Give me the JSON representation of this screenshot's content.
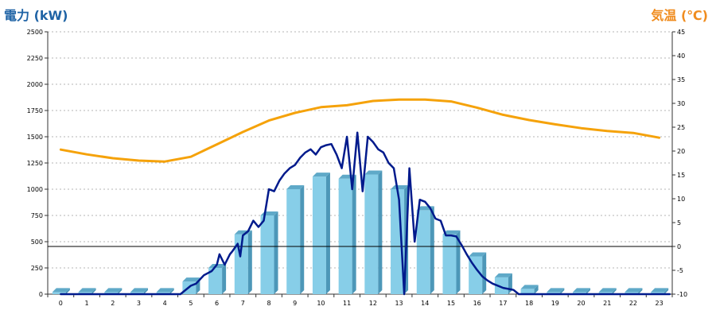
{
  "chart_data": {
    "type": "bar",
    "title": "",
    "left_axis": {
      "label": "電力 (kW)",
      "range": [
        0,
        2500
      ],
      "ticks": [
        0,
        250,
        500,
        750,
        1000,
        1250,
        1500,
        1750,
        2000,
        2250,
        2500
      ]
    },
    "right_axis": {
      "label": "気温 (℃)",
      "range": [
        -10,
        45
      ],
      "ticks": [
        -10,
        -5,
        0,
        5,
        10,
        15,
        20,
        25,
        30,
        35,
        40,
        45
      ]
    },
    "categories": [
      "0",
      "1",
      "2",
      "3",
      "4",
      "5",
      "6",
      "7",
      "8",
      "9",
      "10",
      "11",
      "12",
      "13",
      "14",
      "15",
      "16",
      "17",
      "18",
      "19",
      "20",
      "21",
      "22",
      "23"
    ],
    "grid": true,
    "legend": "none",
    "series": [
      {
        "type": "bar",
        "axis": "left",
        "color": "#87cee8",
        "values": [
          20,
          20,
          20,
          20,
          20,
          120,
          250,
          570,
          750,
          1000,
          1120,
          1100,
          1140,
          1000,
          800,
          570,
          360,
          160,
          50,
          20,
          20,
          20,
          20,
          20
        ]
      },
      {
        "type": "line",
        "axis": "left",
        "color": "#001a8c",
        "x": [
          0,
          4,
          4.3,
          4.6,
          5,
          5.2,
          5.5,
          5.8,
          6,
          6.1,
          6.3,
          6.5,
          6.6,
          6.8,
          6.9,
          7,
          7.2,
          7.4,
          7.6,
          7.8,
          8,
          8.2,
          8.4,
          8.6,
          8.8,
          9,
          9.2,
          9.4,
          9.6,
          9.8,
          10,
          10.2,
          10.4,
          10.6,
          10.8,
          11,
          11.2,
          11.4,
          11.6,
          11.8,
          12,
          12.2,
          12.4,
          12.6,
          12.8,
          13,
          13.2,
          13.4,
          13.6,
          13.8,
          14,
          14.2,
          14.4,
          14.6,
          14.8,
          15,
          15.2,
          15.4,
          15.6,
          15.8,
          16,
          16.2,
          16.4,
          16.6,
          16.8,
          17,
          17.2,
          17.4,
          17.6,
          17.8,
          18,
          23.4
        ],
        "values": [
          0,
          0,
          0,
          0,
          80,
          100,
          180,
          220,
          280,
          380,
          280,
          380,
          410,
          480,
          360,
          560,
          600,
          700,
          640,
          700,
          1000,
          980,
          1080,
          1150,
          1200,
          1230,
          1300,
          1350,
          1380,
          1330,
          1400,
          1420,
          1430,
          1330,
          1200,
          1500,
          1000,
          1540,
          980,
          1500,
          1450,
          1380,
          1350,
          1250,
          1200,
          900,
          0,
          1200,
          500,
          900,
          880,
          820,
          720,
          700,
          560,
          560,
          550,
          470,
          380,
          300,
          230,
          170,
          130,
          100,
          80,
          60,
          50,
          40,
          0,
          0,
          0,
          0
        ]
      },
      {
        "type": "line",
        "axis": "right",
        "color": "#f5a20a",
        "x": [
          0,
          1,
          2,
          3,
          4,
          5,
          6,
          7,
          8,
          9,
          10,
          11,
          12,
          13,
          14,
          15,
          16,
          17,
          18,
          19,
          20,
          21,
          22,
          23
        ],
        "values": [
          20.3,
          19.3,
          18.5,
          18,
          17.8,
          18.8,
          21.4,
          24,
          26.4,
          28,
          29.2,
          29.6,
          30.5,
          30.8,
          30.8,
          30.4,
          29.1,
          27.6,
          26.5,
          25.6,
          24.8,
          24.2,
          23.8,
          22.8
        ]
      }
    ],
    "reference_line": {
      "axis": "right",
      "value": 0,
      "color": "#000000"
    }
  }
}
